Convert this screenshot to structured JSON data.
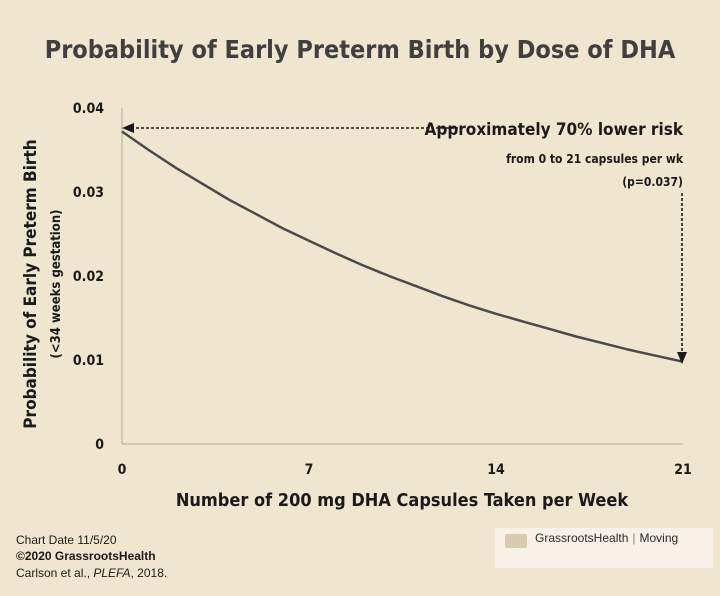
{
  "chart_data": {
    "type": "line",
    "title": "Probability of Early Preterm Birth by Dose of DHA",
    "xlabel": "Number of 200 mg DHA Capsules Taken per Week",
    "ylabel": "Probability of Early Preterm Birth",
    "ylabel_sub": "(<34 weeks gestation)",
    "xlim": [
      0,
      21
    ],
    "ylim": [
      0,
      0.04
    ],
    "x_ticks": [
      0,
      7,
      14,
      21
    ],
    "x_tick_labels": [
      "0",
      "7",
      "14",
      "21"
    ],
    "y_ticks": [
      0,
      0.01,
      0.02,
      0.03,
      0.04
    ],
    "y_tick_labels": [
      "0",
      "0.01",
      "0.02",
      "0.03",
      "0.04"
    ],
    "grid": false,
    "series": [
      {
        "x": [
          0,
          1,
          2,
          3,
          4,
          5,
          6,
          7,
          8,
          9,
          10,
          11,
          12,
          13,
          14,
          15,
          16,
          17,
          18,
          19,
          20,
          21
        ],
        "y": [
          0.0372,
          0.035,
          0.0329,
          0.031,
          0.0291,
          0.0274,
          0.0257,
          0.0242,
          0.0227,
          0.0213,
          0.02,
          0.0188,
          0.0176,
          0.0165,
          0.0155,
          0.0146,
          0.0137,
          0.0128,
          0.012,
          0.0112,
          0.0105,
          0.0098
        ]
      }
    ],
    "annotations": {
      "headline": "Approximately 70% lower risk",
      "detail": "from 0 to 21 capsules per wk",
      "pvalue": "(p=0.037)"
    },
    "colors": {
      "background": "#f0e6d0",
      "line": "#4a4a4a",
      "title": "#3f3f3f",
      "text": "#1a1a1a"
    }
  },
  "footer": {
    "date": "Chart Date 11/5/20",
    "copyright": "©2020 GrassrootsHealth",
    "citation_authors": "Carlson et al., ",
    "citation_journal": "PLEFA",
    "citation_year": ", 2018."
  },
  "logo": {
    "name": "GrassrootsHealth",
    "tagline": "Moving"
  }
}
